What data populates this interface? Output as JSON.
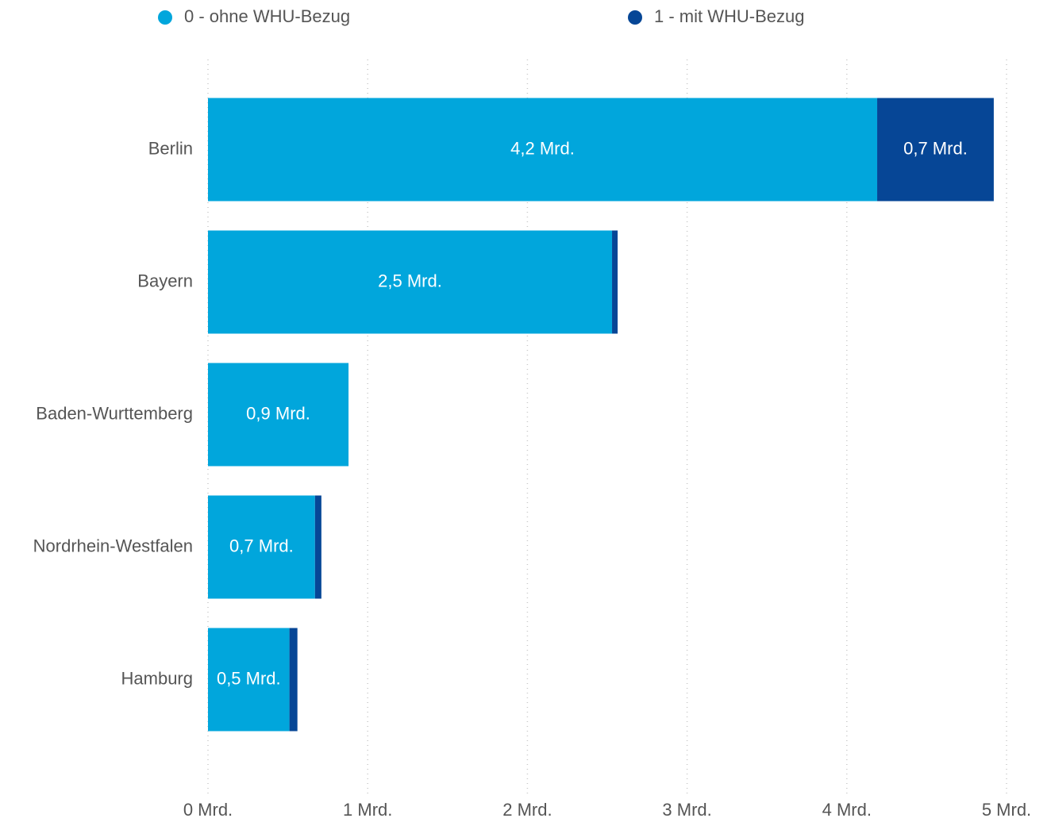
{
  "chart_data": {
    "type": "stacked-bar-horizontal",
    "categories": [
      "Berlin",
      "Bayern",
      "Baden-Wurttemberg",
      "Nordrhein-Westfalen",
      "Hamburg"
    ],
    "series": [
      {
        "name": "0 - ohne WHU-Bezug",
        "color": "#01a6dc",
        "values": [
          4.19,
          2.53,
          0.88,
          0.67,
          0.51
        ],
        "value_labels": [
          "4,2 Mrd.",
          "2,5 Mrd.",
          "0,9 Mrd.",
          "0,7 Mrd.",
          "0,5 Mrd."
        ]
      },
      {
        "name": "1 - mit WHU-Bezug",
        "color": "#064696",
        "values": [
          0.73,
          0.035,
          0,
          0.04,
          0.05
        ],
        "value_labels": [
          "0,7 Mrd.",
          null,
          null,
          null,
          null
        ]
      }
    ],
    "xlim": [
      0,
      5
    ],
    "xticks": [
      {
        "value": 0,
        "label": "0 Mrd."
      },
      {
        "value": 1,
        "label": "1 Mrd."
      },
      {
        "value": 2,
        "label": "2 Mrd."
      },
      {
        "value": 3,
        "label": "3 Mrd."
      },
      {
        "value": 4,
        "label": "4 Mrd."
      },
      {
        "value": 5,
        "label": "5 Mrd."
      }
    ],
    "grid": true,
    "legend": "top"
  }
}
